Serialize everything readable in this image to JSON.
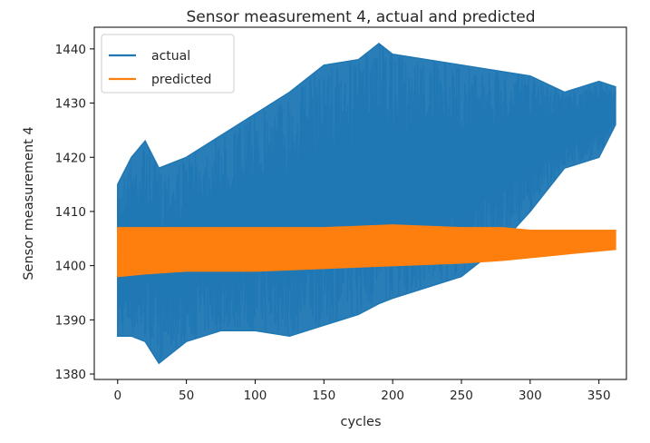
{
  "chart_data": {
    "type": "line",
    "title": "Sensor measurement 4, actual and predicted",
    "xlabel": "cycles",
    "ylabel": "Sensor measurement 4",
    "xlim": [
      -17,
      370
    ],
    "ylim": [
      1379,
      1444
    ],
    "xticks": [
      0,
      50,
      100,
      150,
      200,
      250,
      300,
      350
    ],
    "yticks": [
      1380,
      1390,
      1400,
      1410,
      1420,
      1430,
      1440
    ],
    "grid": false,
    "legend": {
      "placement": "top-left",
      "entries": [
        "actual",
        "predicted"
      ]
    },
    "series": [
      {
        "name": "actual",
        "color": "#1f77b4",
        "envelope": {
          "x": [
            0,
            10,
            20,
            30,
            50,
            75,
            100,
            125,
            150,
            175,
            190,
            200,
            225,
            250,
            275,
            300,
            325,
            350,
            362
          ],
          "upper": [
            1415,
            1420,
            1423,
            1418,
            1420,
            1424,
            1428,
            1432,
            1437,
            1438,
            1441,
            1439,
            1438,
            1437,
            1436,
            1435,
            1432,
            1434,
            1433
          ],
          "lower": [
            1387,
            1387,
            1386,
            1382,
            1386,
            1388,
            1388,
            1387,
            1389,
            1391,
            1393,
            1394,
            1396,
            1398,
            1403,
            1410,
            1418,
            1420,
            1426
          ]
        }
      },
      {
        "name": "predicted",
        "color": "#ff7f0e",
        "envelope": {
          "x": [
            0,
            20,
            50,
            100,
            150,
            200,
            250,
            280,
            300,
            320,
            340,
            362
          ],
          "upper": [
            1407,
            1407,
            1407,
            1407,
            1407,
            1407.5,
            1407,
            1407,
            1406.5,
            1406.5,
            1406.5,
            1406.5
          ],
          "lower": [
            1398,
            1398.5,
            1399,
            1399,
            1399.5,
            1400,
            1400.5,
            1401,
            1401.5,
            1402,
            1402.5,
            1403
          ]
        }
      }
    ]
  }
}
